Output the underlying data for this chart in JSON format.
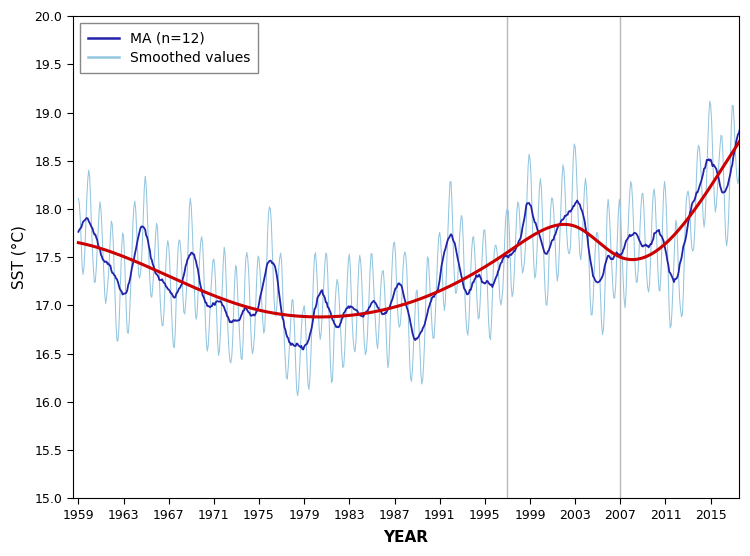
{
  "xlabel": "YEAR",
  "ylabel": "SST (°C)",
  "ylim": [
    15.0,
    20.0
  ],
  "xlim": [
    1958.5,
    2017.5
  ],
  "xticks": [
    1959,
    1963,
    1967,
    1971,
    1975,
    1979,
    1983,
    1987,
    1991,
    1995,
    1999,
    2003,
    2007,
    2011,
    2015
  ],
  "yticks": [
    15.0,
    15.5,
    16.0,
    16.5,
    17.0,
    17.5,
    18.0,
    18.5,
    19.0,
    19.5,
    20.0
  ],
  "vlines": [
    1997.0,
    2007.0
  ],
  "vline_color": "#b8b8b8",
  "smoothed_color": "#94c6e0",
  "ma_color": "#2222aa",
  "trend_color": "#cc0000",
  "smoothed_lw": 0.75,
  "ma_lw": 1.3,
  "trend_lw": 2.2,
  "legend_labels": [
    "MA (n=12)",
    "Smoothed values"
  ],
  "ylabel_text": "SST (°C)",
  "seed": 42
}
